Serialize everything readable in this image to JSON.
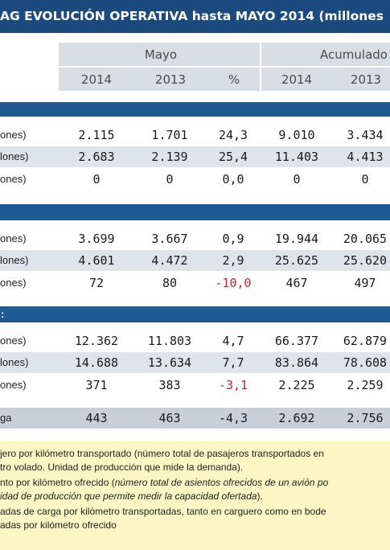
{
  "title": "AG EVOLUCIÓN OPERATIVA hasta MAYO 2014 (millones",
  "header": {
    "group_mayo": "Mayo",
    "group_acum": "Acumulado",
    "cols": [
      "2014",
      "2013",
      "%",
      "2014",
      "2013"
    ]
  },
  "sections": [
    {
      "rows": [
        {
          "label": "ones)",
          "values": [
            "2.115",
            "1.701",
            "24,3",
            "9.010",
            "3.434"
          ],
          "neg": false
        },
        {
          "label": "lones)",
          "values": [
            "2.683",
            "2.139",
            "25,4",
            "11.403",
            "4.413"
          ],
          "neg": false
        },
        {
          "label": "ones)",
          "values": [
            "0",
            "0",
            "0,0",
            "0",
            "0"
          ],
          "neg": false
        }
      ]
    },
    {
      "rows": [
        {
          "label": "ones)",
          "values": [
            "3.699",
            "3.667",
            "0,9",
            "19.944",
            "20.065"
          ],
          "neg": false
        },
        {
          "label": "lones)",
          "values": [
            "4.601",
            "4.472",
            "2,9",
            "25.625",
            "25.620"
          ],
          "neg": false
        },
        {
          "label": "ones)",
          "values": [
            "72",
            "80",
            "-10,0",
            "467",
            "497"
          ],
          "neg": true
        }
      ]
    },
    {
      "header_label": ":",
      "rows": [
        {
          "label": "ones)",
          "values": [
            "12.362",
            "11.803",
            "4,7",
            "66.377",
            "62.879"
          ],
          "neg": false
        },
        {
          "label": "lones)",
          "values": [
            "14.688",
            "13.634",
            "7,7",
            "83.864",
            "78.608"
          ],
          "neg": false
        },
        {
          "label": "ones)",
          "values": [
            "371",
            "383",
            "-3,1",
            "2.225",
            "2.259"
          ],
          "neg": true
        }
      ]
    }
  ],
  "cargo": {
    "label": "ga",
    "values": [
      "443",
      "463",
      "-4,3",
      "2.692",
      "2.756"
    ]
  },
  "notes": [
    "jero por kilómetro transportado (número total de pasajeros transportados en",
    "tro volado. Unidad de producción que mide la demanda).",
    "nto por kilómetro ofrecido (",
    "número total de asientos ofrecidos de un avión po",
    "idad de producción que permite medir la capacidad ofertada",
    ").",
    "adas de carga por kilómetro transportadas, tanto en carguero como en bode",
    "adas por kilómetro ofrecido"
  ],
  "colors": {
    "title_bg": "#1b4a7e",
    "section_bar": "#1e5a94",
    "negative": "#c8232c",
    "notes_bg": "#fbf6c4"
  }
}
